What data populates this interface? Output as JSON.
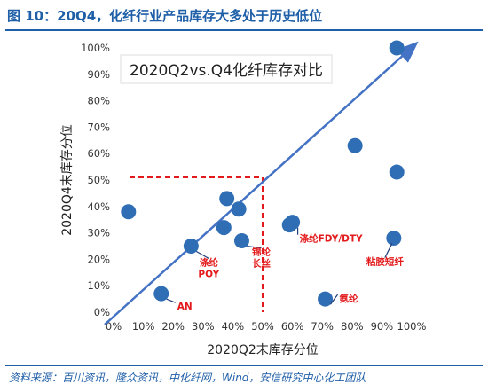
{
  "figure": {
    "title": "图 10：20Q4，化纤行业产品库存大多处于历史低位",
    "source": "资料来源：百川资讯，隆众资讯，中化纤网，Wind，安信研究中心化工团队"
  },
  "chart_data": {
    "type": "scatter",
    "title": "2020Q2vs.Q4化纤库存对比",
    "xlabel": "2020Q2末库存分位",
    "ylabel": "2020Q4末库存分位",
    "xlim": [
      0,
      100
    ],
    "ylim": [
      0,
      100
    ],
    "x_ticks": [
      "0%",
      "10%",
      "20%",
      "30%",
      "40%",
      "50%",
      "60%",
      "70%",
      "80%",
      "90%",
      "100%"
    ],
    "y_ticks": [
      "0%",
      "10%",
      "20%",
      "30%",
      "40%",
      "50%",
      "60%",
      "70%",
      "80%",
      "90%",
      "100%"
    ],
    "grid": false,
    "point_color": "#2f6eb5",
    "reference_line": {
      "from": [
        0,
        0
      ],
      "to": [
        100,
        100
      ],
      "color": "#4472c4",
      "arrow": true
    },
    "threshold_lines": {
      "x": 50,
      "y": 51,
      "color": "#e31a1c"
    },
    "annotation_color": "#e31a1c",
    "points": [
      {
        "x": 5,
        "y": 38
      },
      {
        "x": 16,
        "y": 7,
        "label": "AN"
      },
      {
        "x": 26,
        "y": 25,
        "label": "涤纶\nPOY"
      },
      {
        "x": 37,
        "y": 32
      },
      {
        "x": 38,
        "y": 43
      },
      {
        "x": 42,
        "y": 39
      },
      {
        "x": 43,
        "y": 27,
        "label": "锦纶\n长丝"
      },
      {
        "x": 59,
        "y": 33
      },
      {
        "x": 60,
        "y": 34,
        "label": "涤纶FDY/DTY"
      },
      {
        "x": 71,
        "y": 5,
        "label": "氨纶"
      },
      {
        "x": 81,
        "y": 63
      },
      {
        "x": 94,
        "y": 28,
        "label": "粘胶短纤"
      },
      {
        "x": 95,
        "y": 53
      },
      {
        "x": 95,
        "y": 100
      }
    ]
  }
}
